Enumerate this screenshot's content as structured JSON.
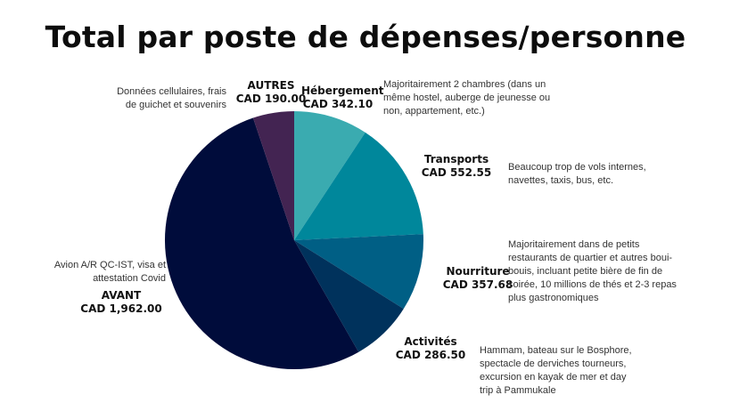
{
  "chart_data": {
    "type": "pie",
    "title": "Total par poste de dépenses/personne",
    "currency": "CAD",
    "slices": [
      {
        "name": "Hébergement",
        "value_label": "CAD 342.10",
        "value": 342.1,
        "color": "#3aabb0",
        "note": "Majoritairement 2 chambres (dans un même hostel, auberge de jeunesse ou non, appartement, etc.)"
      },
      {
        "name": "Transports",
        "value_label": "CAD 552.55",
        "value": 552.55,
        "color": "#00879b",
        "note": "Beaucoup trop de vols internes, navettes, taxis, bus, etc."
      },
      {
        "name": "Nourriture",
        "value_label": "CAD 357.68",
        "value": 357.68,
        "color": "#005f85",
        "note": "Majoritairement dans de petits restaurants de quartier et autres boui-bouis, incluant petite bière de fin de soirée, 10 millions de thés et 2-3 repas plus gastronomiques"
      },
      {
        "name": "Activités",
        "value_label": "CAD 286.50",
        "value": 286.5,
        "color": "#00325c",
        "note": "Hammam, bateau sur le Bosphore, spectacle de derviches tourneurs, excursion en kayak de mer et day trip à Pammukale"
      },
      {
        "name": "AVANT",
        "value_label": "CAD 1,962.00",
        "value": 1962.0,
        "color": "#000c3b",
        "note": "Avion A/R QC-IST, visa et attestation Covid"
      },
      {
        "name": "AUTRES",
        "value_label": "CAD 190.00",
        "value": 190.0,
        "color": "#432452",
        "note": "Données cellulaires, frais de guichet et souvenirs"
      }
    ]
  }
}
